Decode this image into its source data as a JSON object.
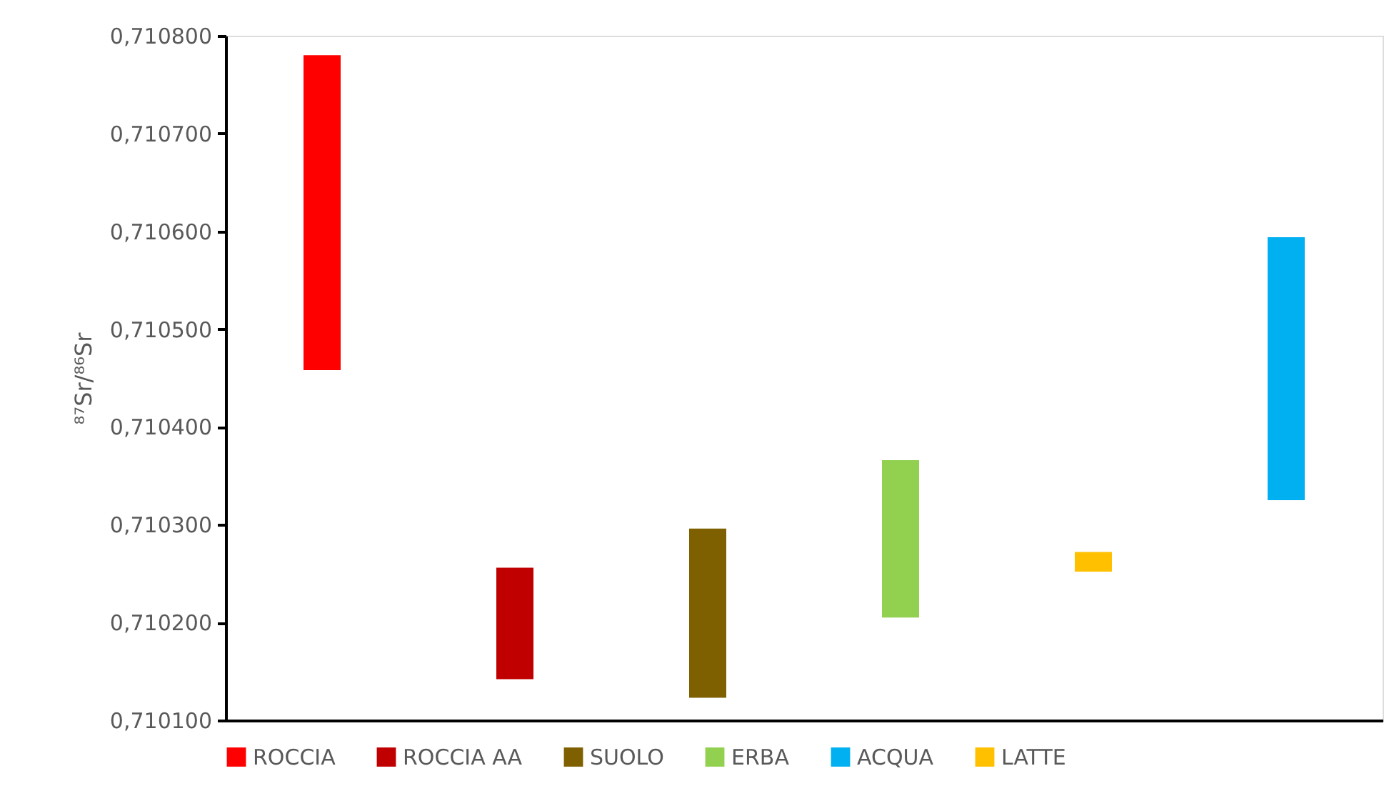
{
  "chart_data": {
    "type": "bar",
    "ylabel": "⁸⁷Sr/⁸⁶Sr",
    "categories": [
      null,
      null,
      null,
      null,
      null,
      null
    ],
    "series": [
      {
        "name": "ROCCIA",
        "color": "#ff0000",
        "values": [
          0.000322,
          null,
          null,
          null,
          null,
          null
        ],
        "base": [
          0.710458,
          null,
          null,
          null,
          null,
          null
        ]
      },
      {
        "name": "ROCCIA AA",
        "color": "#c00000",
        "values": [
          null,
          0.000114,
          null,
          null,
          null,
          null
        ],
        "base": [
          null,
          0.710142,
          null,
          null,
          null,
          null
        ]
      },
      {
        "name": "SUOLO",
        "color": "#7f6000",
        "values": [
          null,
          null,
          0.000173,
          null,
          null,
          null
        ],
        "base": [
          null,
          null,
          0.710123,
          null,
          null,
          null
        ]
      },
      {
        "name": "ERBA",
        "color": "#92d050",
        "values": [
          null,
          null,
          null,
          0.000161,
          null,
          null
        ],
        "base": [
          null,
          null,
          null,
          0.710205,
          null,
          null
        ]
      },
      {
        "name": "ACQUA",
        "color": "#00b0f0",
        "values": [
          null,
          null,
          null,
          null,
          null,
          0.000269
        ],
        "base": [
          null,
          null,
          null,
          null,
          null,
          0.710325
        ]
      },
      {
        "name": "LATTE",
        "color": "#ffc000",
        "values": [
          null,
          null,
          null,
          null,
          2e-05,
          null
        ],
        "base": [
          null,
          null,
          null,
          null,
          0.710252,
          null
        ]
      }
    ],
    "ylim": [
      0.7101,
      0.7108
    ],
    "yticks": [
      {
        "value": 0.7101,
        "label": "0,710100"
      },
      {
        "value": 0.7102,
        "label": "0,710200"
      },
      {
        "value": 0.7103,
        "label": "0,710300"
      },
      {
        "value": 0.7104,
        "label": "0,710400"
      },
      {
        "value": 0.7105,
        "label": "0,710500"
      },
      {
        "value": 0.7106,
        "label": "0,710600"
      },
      {
        "value": 0.7107,
        "label": "0,710700"
      },
      {
        "value": 0.7108,
        "label": "0,710800"
      }
    ],
    "grid": false,
    "legend": "bottom",
    "tick_labels": "y"
  }
}
